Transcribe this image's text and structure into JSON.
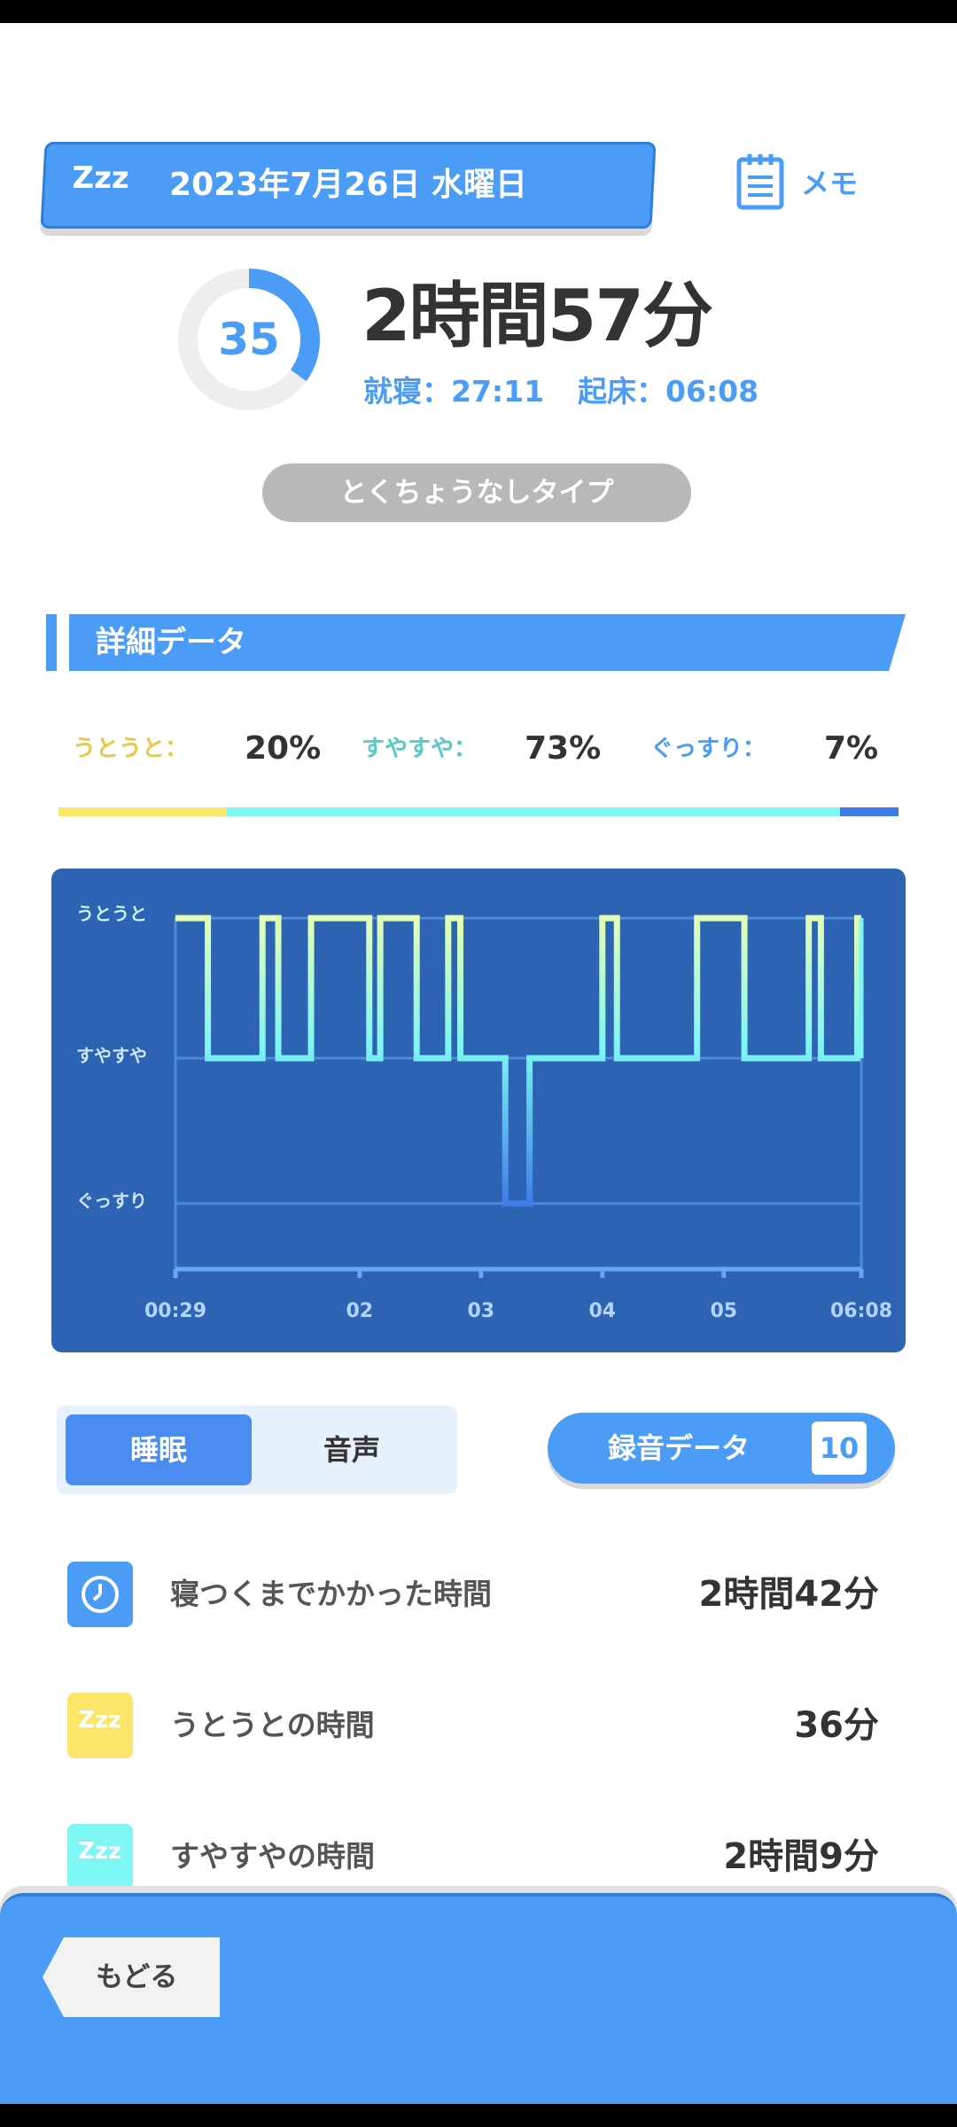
{
  "header": {
    "zzz": "Zzz",
    "date": "2023年7月26日 水曜日",
    "memo_label": "メモ"
  },
  "summary": {
    "score": "35",
    "score_fraction": 0.35,
    "duration": "2時間57分",
    "bedtime": "就寝：27:11",
    "wakeup": "起床：06:08",
    "type": "とくちょうなしタイプ"
  },
  "section": {
    "title": "詳細データ"
  },
  "ratios": {
    "utouto_label": "うとうと：",
    "utouto_value": "20%",
    "suyasuya_label": "すやすや：",
    "suyasuya_value": "73%",
    "gussuri_label": "ぐっすり：",
    "gussuri_value": "7%",
    "colors": {
      "utouto": "#fce66a",
      "suyasuya": "#7ef6f4",
      "gussuri": "#3f7be6"
    }
  },
  "chart_data": {
    "type": "line",
    "y_categories": [
      "うとうと",
      "すやすや",
      "ぐっすり"
    ],
    "x_ticks": [
      "00:29",
      "02",
      "03",
      "04",
      "05",
      "06:08"
    ],
    "x_tick_hours": [
      0.483,
      2.0,
      3.0,
      4.0,
      5.0,
      6.133
    ],
    "steps": [
      {
        "t": 0.483,
        "level": 0
      },
      {
        "t": 0.75,
        "level": 1
      },
      {
        "t": 1.2,
        "level": 0
      },
      {
        "t": 1.33,
        "level": 1
      },
      {
        "t": 1.6,
        "level": 0
      },
      {
        "t": 2.08,
        "level": 1
      },
      {
        "t": 2.17,
        "level": 0
      },
      {
        "t": 2.47,
        "level": 1
      },
      {
        "t": 2.73,
        "level": 0
      },
      {
        "t": 2.83,
        "level": 1
      },
      {
        "t": 3.2,
        "level": 2
      },
      {
        "t": 3.4,
        "level": 1
      },
      {
        "t": 4.0,
        "level": 0
      },
      {
        "t": 4.12,
        "level": 1
      },
      {
        "t": 4.78,
        "level": 0
      },
      {
        "t": 5.17,
        "level": 1
      },
      {
        "t": 5.7,
        "level": 0
      },
      {
        "t": 5.8,
        "level": 1
      },
      {
        "t": 6.1,
        "level": 0
      },
      {
        "t": 6.133,
        "level": 0
      }
    ],
    "colors": {
      "line_top": "#e4ffb2",
      "line_mid": "#7ef6f4",
      "line_low": "#3f7be6",
      "background": "#2c63b3",
      "grid": "#4f8ad8"
    }
  },
  "tabs": {
    "sleep": "睡眠",
    "sound": "音声"
  },
  "record": {
    "label": "録音データ",
    "count": "10"
  },
  "stats": [
    {
      "name": "寝つくまでかかった時間",
      "value": "2時間42分",
      "icon": "clock-icon",
      "color": "#4a9cf7"
    },
    {
      "name": "うとうとの時間",
      "value": "36分",
      "icon": "zzz-icon",
      "color": "#fce66a"
    },
    {
      "name": "すやすやの時間",
      "value": "2時間9分",
      "icon": "zzz-icon",
      "color": "#7ef6f4"
    }
  ],
  "footer": {
    "back": "もどる"
  }
}
